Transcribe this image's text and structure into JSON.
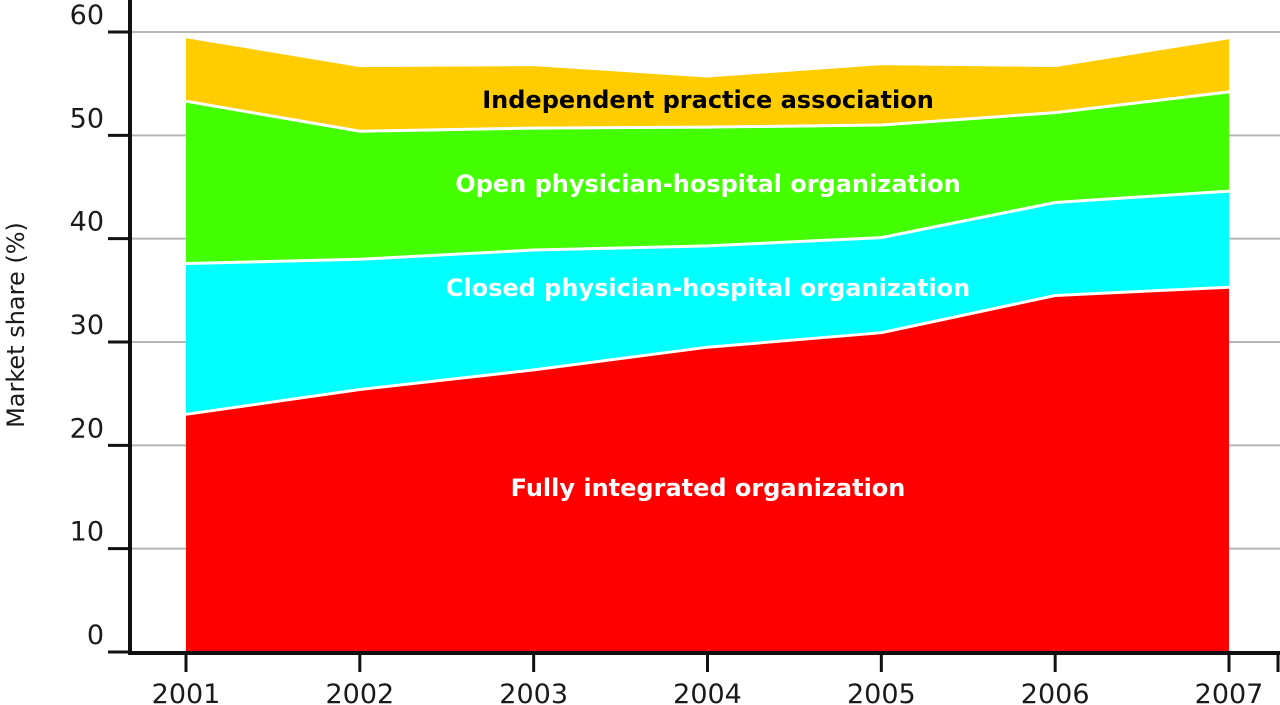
{
  "chart_data": {
    "type": "area",
    "stacked": true,
    "title": "",
    "xlabel": "",
    "ylabel": "Market share (%)",
    "ylim": [
      0,
      60
    ],
    "yticks": [
      0,
      10,
      20,
      30,
      40,
      50,
      60
    ],
    "x": [
      "2001",
      "2002",
      "2003",
      "2004",
      "2005",
      "2006",
      "2007"
    ],
    "grid": true,
    "legend": "none (series labeled inside areas)",
    "series": [
      {
        "name": "Fully integrated organization",
        "color": "#ff0000",
        "label_color": "#ffffff",
        "values": [
          23.0,
          25.4,
          27.3,
          29.5,
          30.9,
          34.5,
          35.3
        ]
      },
      {
        "name": "Closed physician-hospital organization",
        "color": "#00ffff",
        "label_color": "#ffffff",
        "values": [
          14.6,
          12.6,
          11.6,
          9.8,
          9.2,
          9.0,
          9.3
        ]
      },
      {
        "name": "Open physician-hospital organization",
        "color": "#44ff00",
        "label_color": "#ffffff",
        "values": [
          15.7,
          12.4,
          11.8,
          11.5,
          10.9,
          8.7,
          9.6
        ]
      },
      {
        "name": "Independent practice association",
        "color": "#ffcc00",
        "label_color": "#000000",
        "values": [
          6.1,
          6.2,
          6.0,
          4.8,
          5.8,
          4.4,
          5.1
        ]
      }
    ]
  }
}
